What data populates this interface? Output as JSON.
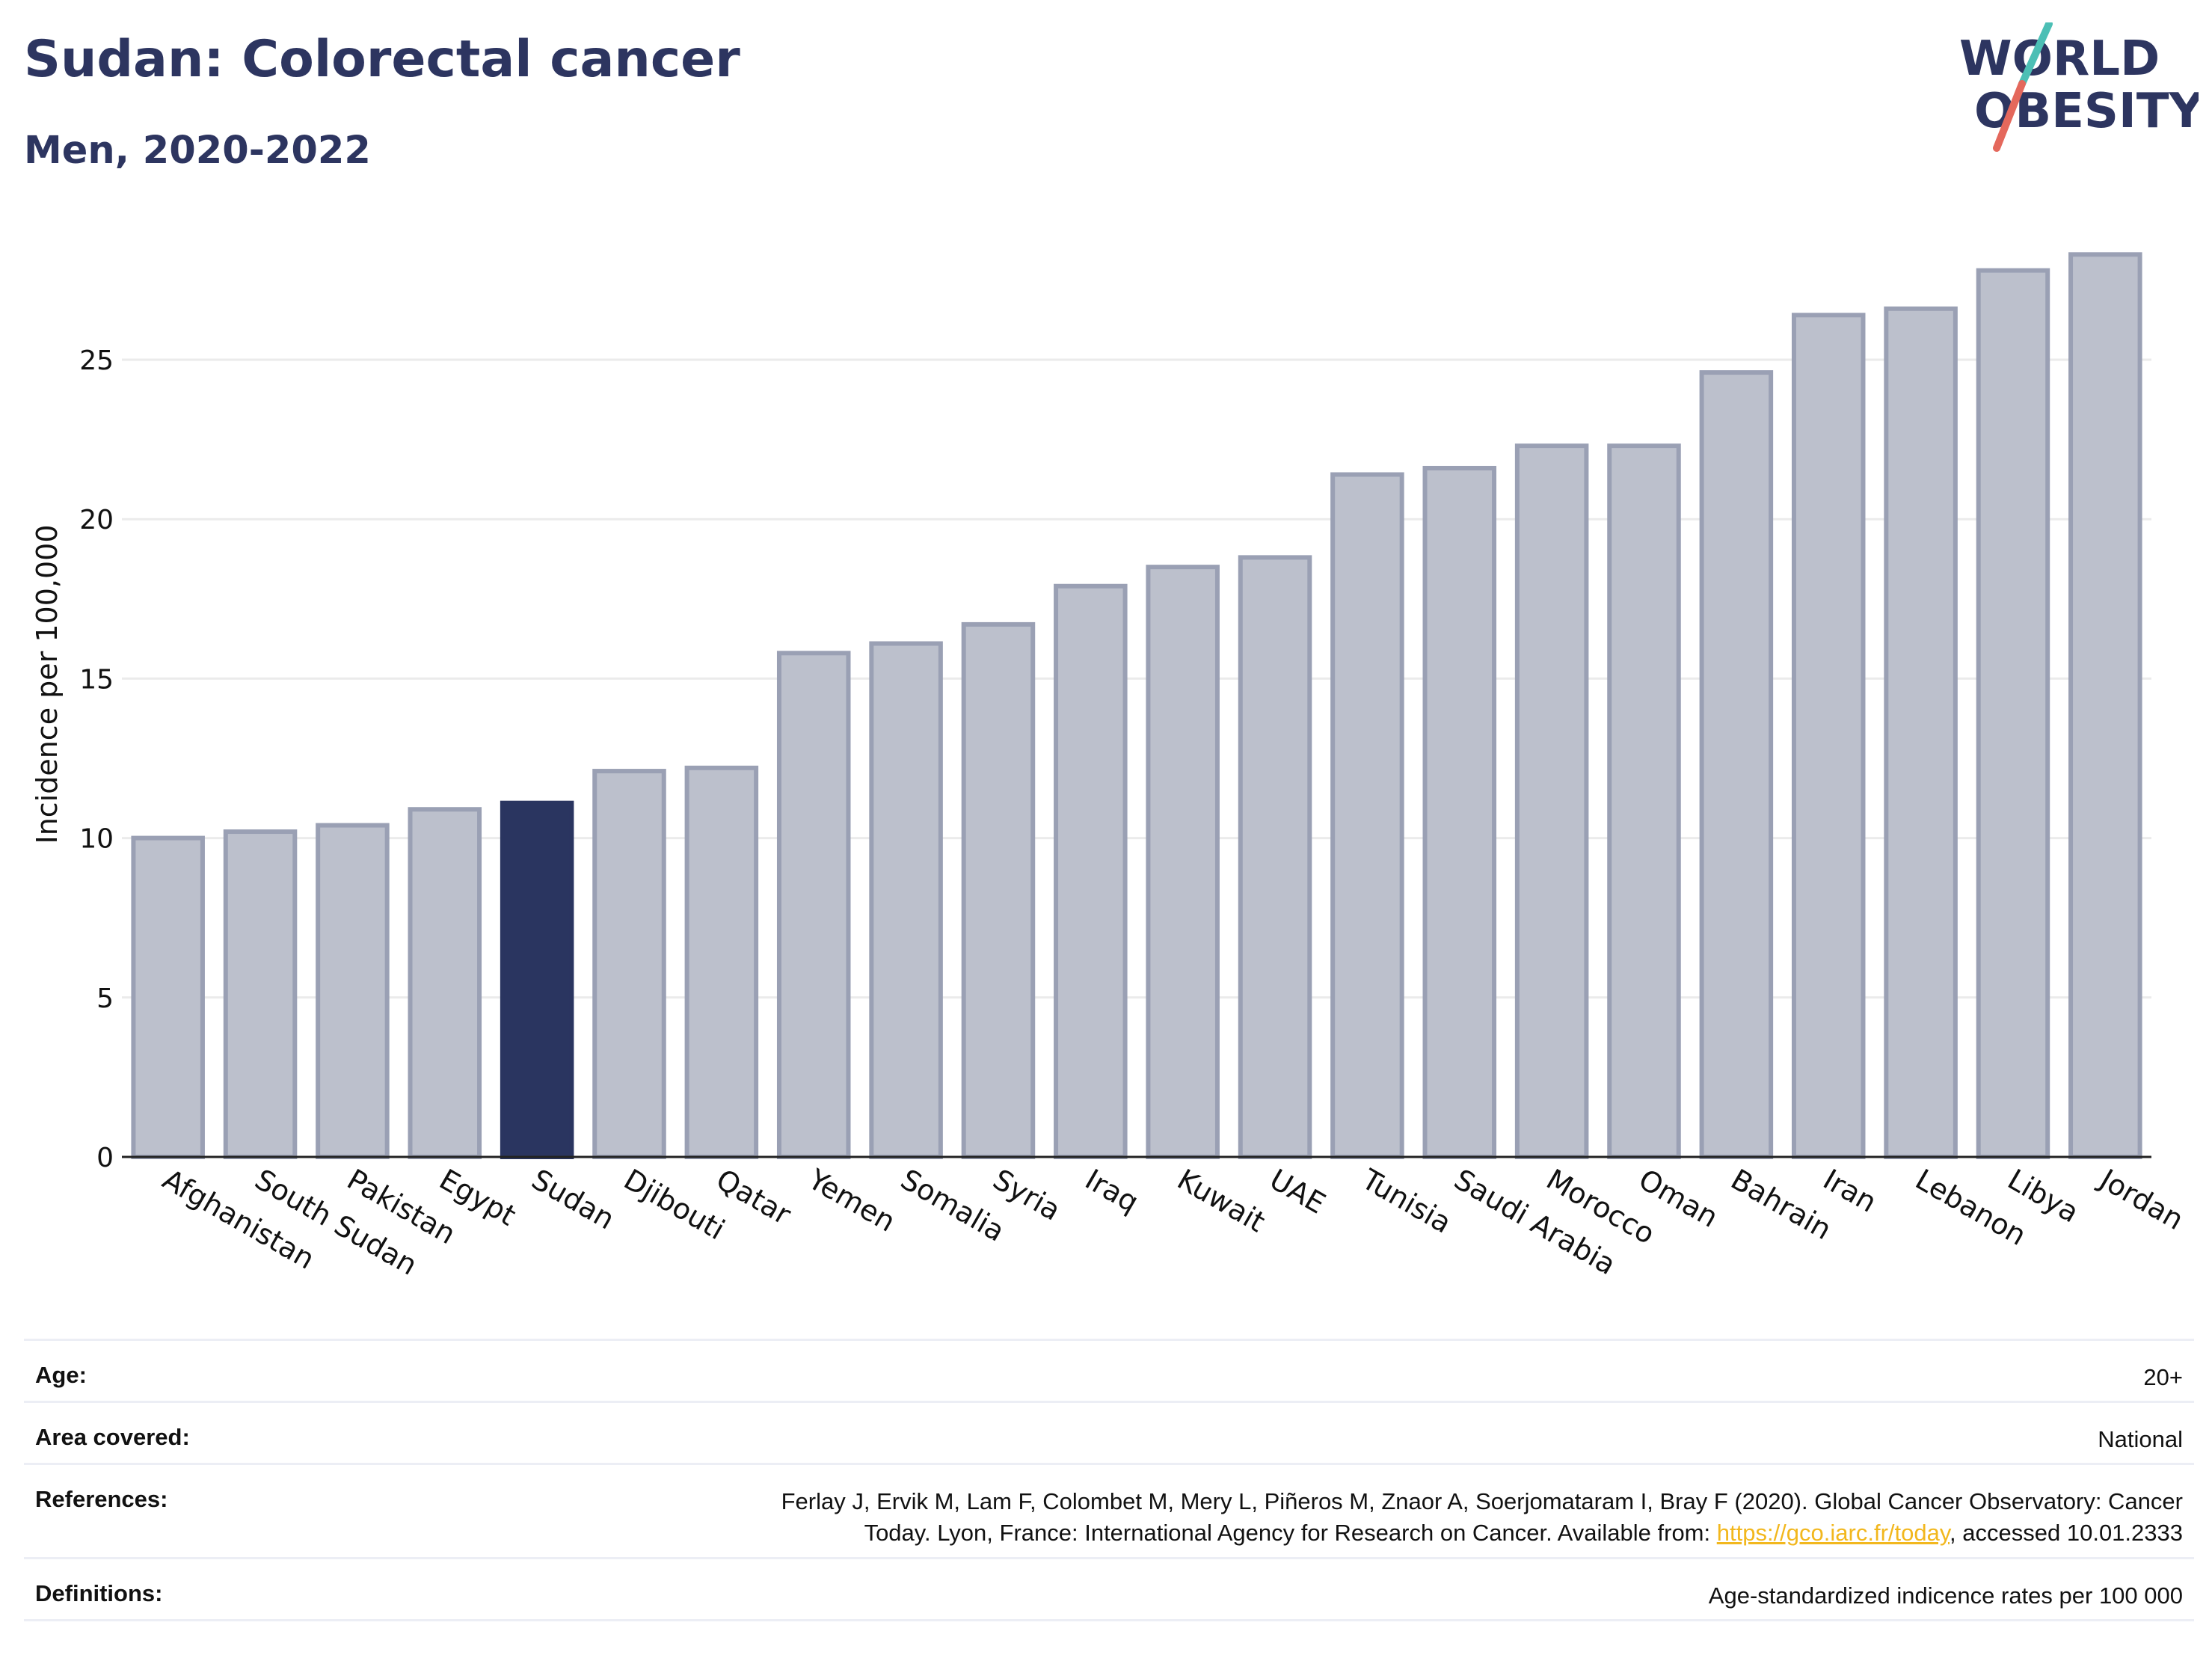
{
  "header": {
    "title": "Sudan: Colorectal cancer",
    "subtitle": "Men, 2020-2022"
  },
  "logo": {
    "line1": "WORLD",
    "line2": "OBESITY"
  },
  "colors": {
    "bar_fill": "#bcc0cc",
    "bar_stroke": "#9aa0b4",
    "highlight": "#2a3560",
    "grid": "#ebebeb",
    "title": "#2d3560",
    "link": "#f2b71d",
    "logo_teal": "#4cbfb5",
    "logo_coral": "#e4685c"
  },
  "chart_data": {
    "type": "bar",
    "title": "",
    "xlabel": "",
    "ylabel": "Incidence per 100,000",
    "ylim": [
      0,
      29
    ],
    "yticks": [
      "0",
      "5",
      "10",
      "15",
      "20",
      "25"
    ],
    "highlight": "Sudan",
    "grid": true,
    "categories": [
      "Afghanistan",
      "South Sudan",
      "Pakistan",
      "Egypt",
      "Sudan",
      "Djibouti",
      "Qatar",
      "Yemen",
      "Somalia",
      "Syria",
      "Iraq",
      "Kuwait",
      "UAE",
      "Tunisia",
      "Saudi Arabia",
      "Morocco",
      "Oman",
      "Bahrain",
      "Iran",
      "Lebanon",
      "Libya",
      "Jordan"
    ],
    "values": [
      10.0,
      10.2,
      10.4,
      10.9,
      11.1,
      12.1,
      12.2,
      15.8,
      16.1,
      16.7,
      17.9,
      18.5,
      18.8,
      21.4,
      21.6,
      22.3,
      22.3,
      24.6,
      26.4,
      26.6,
      27.8,
      28.3
    ]
  },
  "info": {
    "age_label": "Age:",
    "age_value": "20+",
    "area_label": "Area covered:",
    "area_value": "National",
    "references_label": "References:",
    "references_line1": "Ferlay J, Ervik M, Lam F, Colombet M, Mery L, Piñeros M, Znaor A, Soerjomataram I, Bray F (2020). Global Cancer Observatory: Cancer",
    "references_line2_pre": "Today. Lyon, France: International Agency for Research on Cancer. Available from: ",
    "references_link": "https://gco.iarc.fr/today",
    "references_line2_post": ", accessed 10.01.2333",
    "definitions_label": "Definitions:",
    "definitions_value": "Age-standardized indicence rates per 100 000"
  }
}
